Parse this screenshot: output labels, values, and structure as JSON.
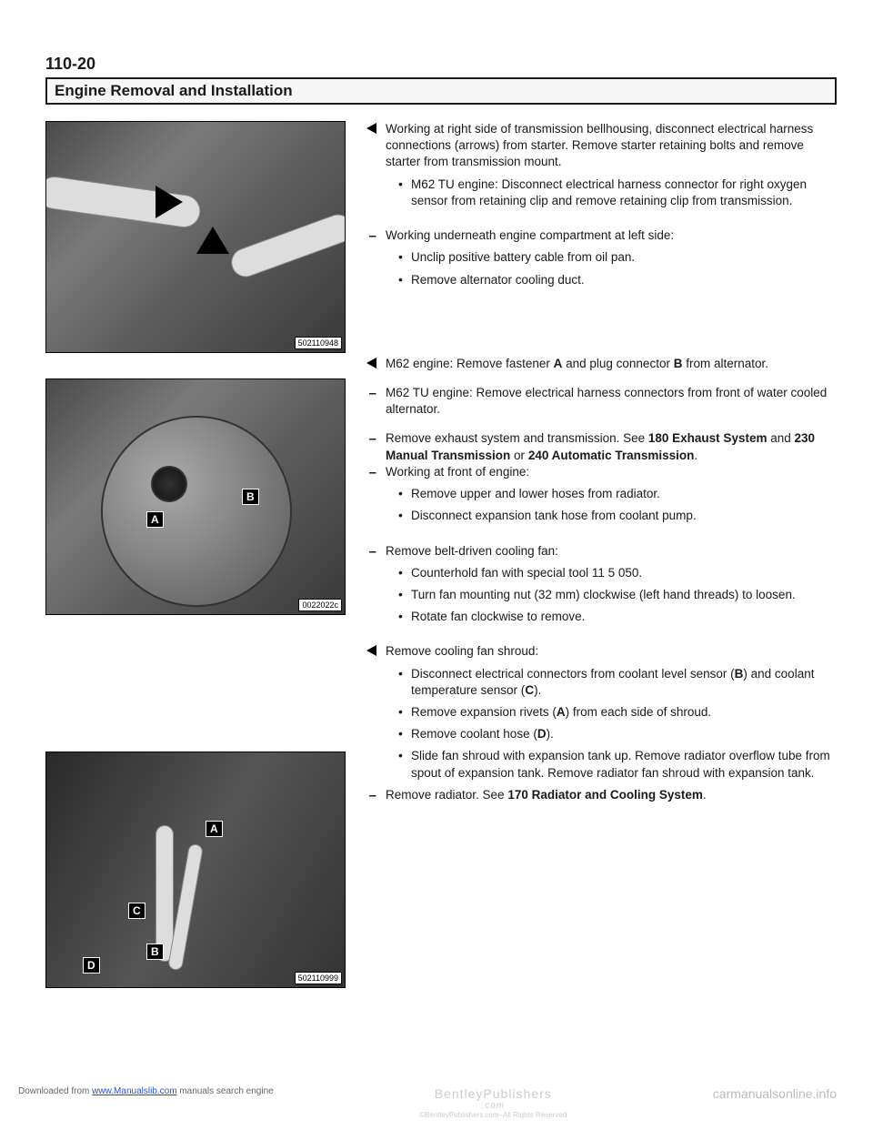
{
  "page_number": "110-20",
  "section_title": "Engine Removal and Installation",
  "figures": {
    "fig1": {
      "id": "502110948",
      "callouts": []
    },
    "fig2": {
      "id": "0022022c",
      "callouts": [
        "A",
        "B"
      ]
    },
    "fig3": {
      "id": "502110999",
      "callouts": [
        "A",
        "B",
        "C",
        "D"
      ]
    }
  },
  "blocks": [
    {
      "marker": "tri",
      "text": "Working at right side of transmission bellhousing, disconnect electrical harness connections (arrows) from starter. Remove starter retaining bolts and remove starter from transmission mount.",
      "subs": [
        "M62 TU engine: Disconnect electrical harness connector for right oxygen sensor from retaining clip and remove retaining clip from transmission."
      ]
    },
    {
      "marker": "dash",
      "text": "Working underneath engine compartment at left side:",
      "subs": [
        "Unclip positive battery cable from oil pan.",
        "Remove alternator cooling duct."
      ]
    },
    {
      "marker": "tri",
      "text_html": "M62 engine: Remove fastener <b>A</b> and plug connector <b>B</b> from alternator.",
      "subs": []
    },
    {
      "marker": "dash",
      "text": "M62 TU engine: Remove electrical harness connectors from front of water cooled alternator.",
      "subs": []
    },
    {
      "marker": "dash",
      "text_html": "Remove exhaust system and transmission. See <b>180 Exhaust System</b> and <b>230 Manual Transmission</b> or <b>240 Automatic Transmission</b>.",
      "subs": []
    },
    {
      "marker": "dash",
      "text": "Working at front of engine:",
      "subs": [
        "Remove upper and lower hoses from radiator.",
        "Disconnect expansion tank hose from coolant pump."
      ]
    },
    {
      "marker": "dash",
      "text": "Remove belt-driven cooling fan:",
      "subs": [
        "Counterhold fan with special tool 11 5 050.",
        "Turn fan mounting nut (32 mm) clockwise (left hand threads) to loosen.",
        "Rotate fan clockwise to remove."
      ]
    },
    {
      "marker": "tri",
      "text": "Remove cooling fan shroud:",
      "subs_html": [
        "Disconnect electrical connectors from coolant level sensor (<b>B</b>) and coolant temperature sensor (<b>C</b>).",
        "Remove expansion rivets (<b>A</b>) from each side of shroud.",
        "Remove coolant hose (<b>D</b>).",
        "Slide fan shroud with expansion tank up. Remove radiator overflow tube from spout of expansion tank. Remove radiator fan shroud with expansion tank."
      ]
    },
    {
      "marker": "dash",
      "text_html": "Remove radiator. See <b>170 Radiator and Cooling System</b>.",
      "subs": []
    }
  ],
  "footer": {
    "left_prefix": "Downloaded from ",
    "left_link": "www.Manualslib.com",
    "left_suffix": " manuals search engine",
    "center_line1": "BentleyPublishers",
    "center_line2": ".com",
    "center_line3": "©BentleyPublishers.com–All Rights Reserved",
    "right": "carmanualsonline.info"
  }
}
